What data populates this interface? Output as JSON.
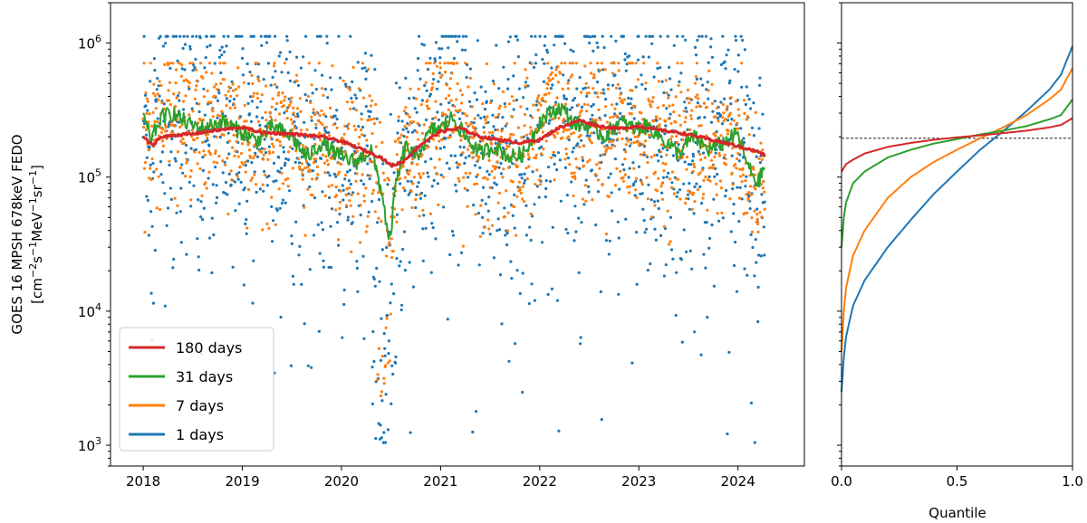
{
  "chart_data": [
    {
      "type": "scatter",
      "panel": "time-series",
      "ylabel_line1": "GOES 16 MPSH 678keV FEDO",
      "ylabel_line2_parts": [
        "[cm",
        "−2",
        "s",
        "−1",
        "MeV",
        "−1",
        "sr",
        "−1",
        "]"
      ],
      "yscale": "log",
      "ylim": [
        700,
        2000000
      ],
      "xlim": [
        2017.67,
        2024.67
      ],
      "x_ticks": [
        2018,
        2019,
        2020,
        2021,
        2022,
        2023,
        2024
      ],
      "x_tick_labels": [
        "2018",
        "2019",
        "2020",
        "2021",
        "2022",
        "2023",
        "2024"
      ],
      "y_ticks": [
        1000,
        10000,
        100000,
        1000000
      ],
      "y_tick_labels": [
        {
          "base": "10",
          "exp": "3"
        },
        {
          "base": "10",
          "exp": "4"
        },
        {
          "base": "10",
          "exp": "5"
        },
        {
          "base": "10",
          "exp": "6"
        }
      ],
      "legend_position": "lower-left",
      "series": [
        {
          "name": "180 days",
          "color": "#d62728",
          "style": "line",
          "x": [
            2018.0,
            2018.1,
            2018.15,
            2018.3,
            2018.5,
            2018.7,
            2019.0,
            2019.2,
            2019.5,
            2019.8,
            2020.0,
            2020.2,
            2020.4,
            2020.5,
            2020.62,
            2020.8,
            2021.0,
            2021.2,
            2021.4,
            2021.6,
            2021.8,
            2022.0,
            2022.2,
            2022.4,
            2022.6,
            2022.8,
            2023.0,
            2023.2,
            2023.4,
            2023.6,
            2023.8,
            2024.0,
            2024.2,
            2024.27
          ],
          "y": [
            200000,
            170000,
            195000,
            205000,
            210000,
            222000,
            235000,
            215000,
            210000,
            200000,
            185000,
            162000,
            140000,
            122000,
            130000,
            175000,
            220000,
            232000,
            200000,
            190000,
            180000,
            190000,
            235000,
            265000,
            240000,
            230000,
            240000,
            225000,
            215000,
            200000,
            185000,
            170000,
            155000,
            145000
          ]
        },
        {
          "name": "31 days",
          "color": "#2ca02c",
          "style": "line",
          "x": [
            2018.0,
            2018.08,
            2018.18,
            2018.3,
            2018.45,
            2018.6,
            2018.8,
            2019.0,
            2019.15,
            2019.3,
            2019.5,
            2019.65,
            2019.8,
            2020.0,
            2020.15,
            2020.3,
            2020.42,
            2020.48,
            2020.55,
            2020.65,
            2020.75,
            2020.9,
            2021.0,
            2021.12,
            2021.25,
            2021.4,
            2021.55,
            2021.7,
            2021.85,
            2022.0,
            2022.1,
            2022.22,
            2022.35,
            2022.5,
            2022.65,
            2022.8,
            2022.95,
            2023.1,
            2023.25,
            2023.4,
            2023.55,
            2023.7,
            2023.85,
            2024.0,
            2024.1,
            2024.2,
            2024.27
          ],
          "y": [
            280000,
            190000,
            280000,
            300000,
            250000,
            230000,
            260000,
            215000,
            185000,
            240000,
            200000,
            140000,
            180000,
            140000,
            130000,
            160000,
            70000,
            30000,
            90000,
            170000,
            140000,
            220000,
            230000,
            280000,
            200000,
            150000,
            170000,
            140000,
            150000,
            260000,
            300000,
            330000,
            250000,
            240000,
            200000,
            260000,
            230000,
            240000,
            190000,
            150000,
            200000,
            160000,
            180000,
            210000,
            120000,
            90000,
            120000
          ]
        },
        {
          "name": "7 days",
          "color": "#ff7f0e",
          "style": "points"
        },
        {
          "name": "1 days",
          "color": "#1f77b4",
          "style": "points"
        }
      ]
    },
    {
      "type": "line",
      "panel": "quantile",
      "xlabel": "Quantile",
      "yscale": "log",
      "ylim": [
        700,
        2000000
      ],
      "xlim": [
        0,
        1
      ],
      "x_ticks": [
        0.0,
        0.5,
        1.0
      ],
      "x_tick_labels": [
        "0.0",
        "0.5",
        "1.0"
      ],
      "reference_line_value": 195000,
      "series": [
        {
          "name": "180 days",
          "color": "#d62728",
          "q": [
            0,
            0.02,
            0.05,
            0.1,
            0.2,
            0.3,
            0.4,
            0.5,
            0.6,
            0.7,
            0.8,
            0.9,
            0.95,
            1.0
          ],
          "y": [
            110000,
            125000,
            135000,
            150000,
            168000,
            180000,
            190000,
            198000,
            205000,
            213000,
            222000,
            235000,
            245000,
            275000
          ]
        },
        {
          "name": "31 days",
          "color": "#2ca02c",
          "q": [
            0,
            0.01,
            0.02,
            0.05,
            0.1,
            0.2,
            0.3,
            0.4,
            0.5,
            0.6,
            0.7,
            0.8,
            0.9,
            0.95,
            1.0
          ],
          "y": [
            30000,
            50000,
            65000,
            90000,
            110000,
            140000,
            160000,
            178000,
            192000,
            208000,
            222000,
            240000,
            270000,
            290000,
            380000
          ]
        },
        {
          "name": "7 days",
          "color": "#ff7f0e",
          "q": [
            0,
            0.01,
            0.02,
            0.05,
            0.1,
            0.2,
            0.3,
            0.4,
            0.5,
            0.6,
            0.7,
            0.8,
            0.9,
            0.95,
            1.0
          ],
          "y": [
            5000,
            10000,
            15000,
            26000,
            40000,
            70000,
            100000,
            130000,
            160000,
            195000,
            235000,
            290000,
            380000,
            450000,
            650000
          ]
        },
        {
          "name": "1 days",
          "color": "#1f77b4",
          "q": [
            0,
            0.01,
            0.02,
            0.05,
            0.1,
            0.2,
            0.3,
            0.4,
            0.5,
            0.6,
            0.7,
            0.8,
            0.9,
            0.95,
            1.0
          ],
          "y": [
            2500,
            4500,
            6500,
            11000,
            17000,
            30000,
            48000,
            75000,
            110000,
            160000,
            220000,
            310000,
            450000,
            580000,
            950000
          ]
        }
      ]
    }
  ]
}
